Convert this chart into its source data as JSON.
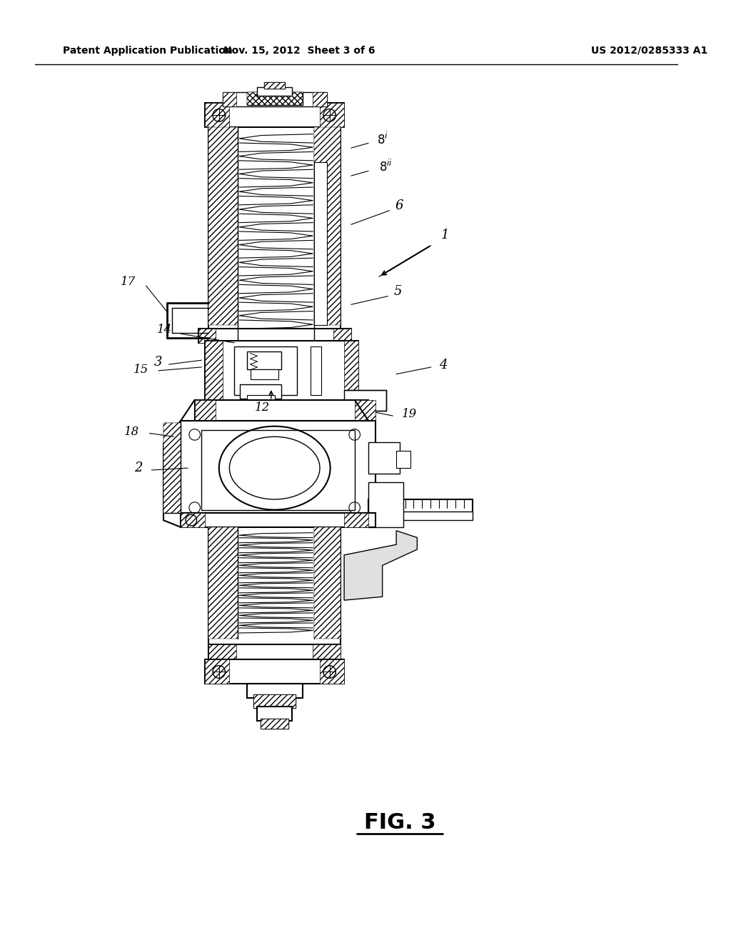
{
  "bg_color": "#ffffff",
  "header_left": "Patent Application Publication",
  "header_center": "Nov. 15, 2012  Sheet 3 of 6",
  "header_right": "US 2012/0285333 A1",
  "figure_label": "FIG. 3"
}
